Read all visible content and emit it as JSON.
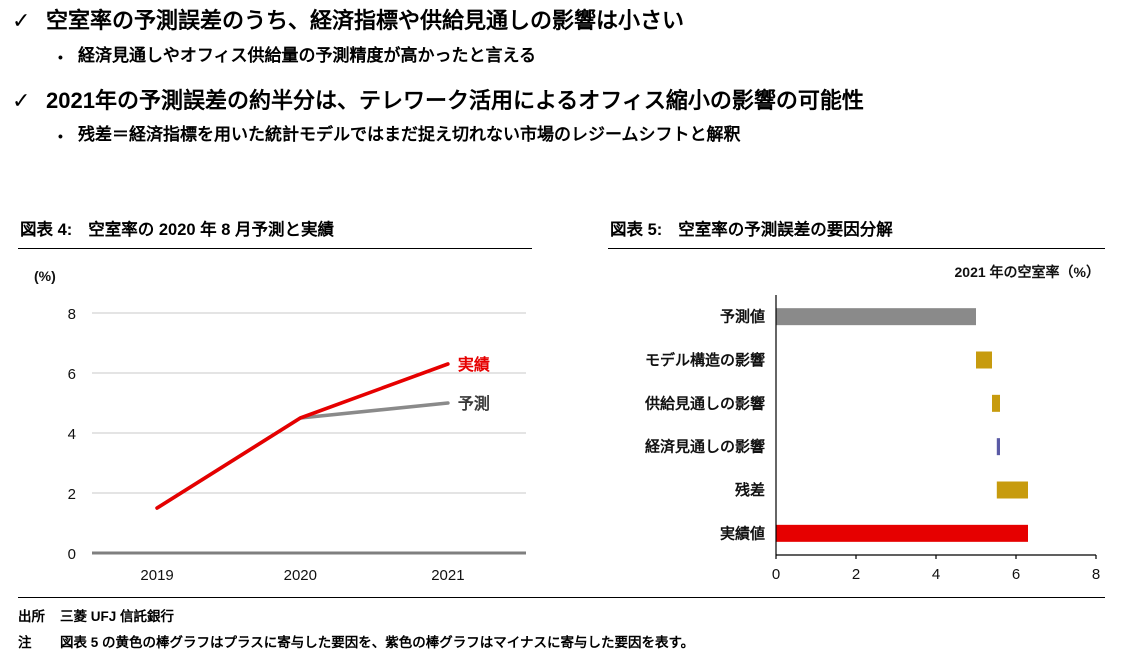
{
  "summary": {
    "bullets": [
      {
        "level": 1,
        "marker": "✓",
        "text": "空室率の予測誤差のうち、経済指標や供給見通しの影響は小さい"
      },
      {
        "level": 2,
        "marker": "•",
        "text": "経済見通しやオフィス供給量の予測精度が高かったと言える"
      },
      {
        "level": 1,
        "marker": "✓",
        "text": "2021年の予測誤差の約半分は、テレワーク活用によるオフィス縮小の影響の可能性"
      },
      {
        "level": 2,
        "marker": "•",
        "text": "残差＝経済指標を用いた統計モデルではまだ捉え切れない市場のレジームシフトと解釈"
      }
    ]
  },
  "figure4": {
    "label": "図表 4:",
    "title": "空室率の 2020 年 8 月予測と実績"
  },
  "figure5": {
    "label": "図表 5:",
    "title": "空室率の予測誤差の要因分解"
  },
  "footer": {
    "source_label": "出所",
    "source_text": "三菱 UFJ 信託銀行",
    "note_label": "注",
    "note_text": "図表 5 の黄色の棒グラフはプラスに寄与した要因を、紫色の棒グラフはマイナスに寄与した要因を表す。"
  },
  "colors": {
    "red": "#e60000",
    "gray": "#8a8a8a",
    "gold": "#c79b0e",
    "purple": "#5a5aa5"
  },
  "chart_data": [
    {
      "type": "line",
      "title": "空室率の 2020 年 8 月予測と実績",
      "unit_label": "(%)",
      "x": [
        "2019",
        "2020",
        "2021"
      ],
      "series": [
        {
          "name": "予測",
          "values": [
            1.5,
            4.5,
            5.0
          ],
          "color": "#8a8a8a",
          "label_color": "#3a3a3a"
        },
        {
          "name": "実績",
          "values": [
            1.5,
            4.5,
            6.3
          ],
          "color": "#e60000",
          "label_color": "#e60000"
        }
      ],
      "xlabel": "",
      "ylabel": "(%)",
      "ylim": [
        0,
        8
      ],
      "yticks": [
        0,
        2,
        4,
        6,
        8
      ],
      "grid": true,
      "legend_position": "labels-at-line-ends"
    },
    {
      "type": "bar",
      "orientation": "horizontal",
      "title": "空室率の予測誤差の要因分解",
      "axis_title": "2021 年の空室率（%）",
      "categories": [
        "予測値",
        "モデル構造の影響",
        "供給見通しの影響",
        "経済見通しの影響",
        "残差",
        "実績値"
      ],
      "bars": [
        {
          "label": "予測値",
          "start": 0,
          "end": 5.0,
          "color": "#8a8a8a"
        },
        {
          "label": "モデル構造の影響",
          "start": 5.0,
          "end": 5.4,
          "color": "#c79b0e"
        },
        {
          "label": "供給見通しの影響",
          "start": 5.4,
          "end": 5.6,
          "color": "#c79b0e"
        },
        {
          "label": "経済見通しの影響",
          "start": 5.52,
          "end": 5.6,
          "color": "#5a5aa5"
        },
        {
          "label": "残差",
          "start": 5.52,
          "end": 6.3,
          "color": "#c79b0e"
        },
        {
          "label": "実績値",
          "start": 0,
          "end": 6.3,
          "color": "#e60000"
        }
      ],
      "xlim": [
        0,
        8
      ],
      "xticks": [
        0,
        2,
        4,
        6,
        8
      ],
      "grid": false
    }
  ]
}
